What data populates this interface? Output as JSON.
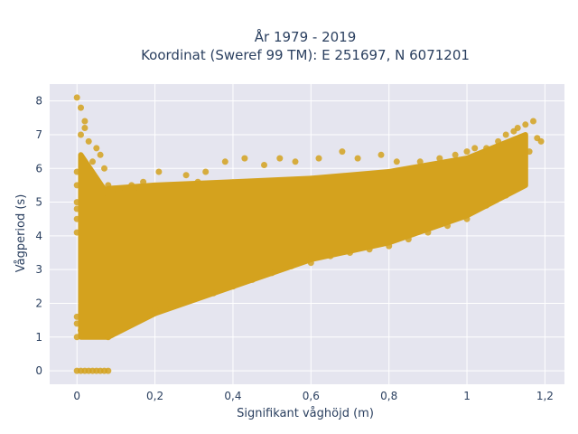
{
  "chart_data": {
    "type": "scatter",
    "title_line1": "År 1979 - 2019",
    "title_line2": "Koordinat (Sweref 99 TM): E 251697, N 6071201",
    "xlabel": "Signifikant våghöjd (m)",
    "ylabel": "Vågperiod (s)",
    "xlim": [
      -0.07,
      1.25
    ],
    "ylim": [
      -0.4,
      8.5
    ],
    "x_ticks": [
      0,
      0.2,
      0.4,
      0.6,
      0.8,
      1,
      1.2
    ],
    "x_tick_labels": [
      "0",
      "0,2",
      "0,4",
      "0,6",
      "0,8",
      "1",
      "1,2"
    ],
    "y_ticks": [
      0,
      1,
      2,
      3,
      4,
      5,
      6,
      7,
      8
    ],
    "y_tick_labels": [
      "0",
      "1",
      "2",
      "3",
      "4",
      "5",
      "6",
      "7",
      "8"
    ],
    "grid": true,
    "marker_color": "#d4a21e",
    "background_color": "#e5e5ef",
    "bands": [
      {
        "x": [
          0.01,
          0.08
        ],
        "ylow": [
          1.0,
          1.0
        ],
        "yhigh": [
          6.4,
          5.2
        ]
      },
      {
        "x": [
          0.08,
          0.2
        ],
        "ylow": [
          1.0,
          1.7
        ],
        "yhigh": [
          5.4,
          5.5
        ]
      },
      {
        "x": [
          0.2,
          0.4
        ],
        "ylow": [
          1.7,
          2.5
        ],
        "yhigh": [
          5.5,
          5.6
        ]
      },
      {
        "x": [
          0.4,
          0.6
        ],
        "ylow": [
          2.5,
          3.3
        ],
        "yhigh": [
          5.6,
          5.7
        ]
      },
      {
        "x": [
          0.6,
          0.8
        ],
        "ylow": [
          3.3,
          3.8
        ],
        "yhigh": [
          5.7,
          5.9
        ]
      },
      {
        "x": [
          0.8,
          1.0
        ],
        "ylow": [
          3.8,
          4.6
        ],
        "yhigh": [
          5.9,
          6.3
        ]
      },
      {
        "x": [
          1.0,
          1.15
        ],
        "ylow": [
          4.6,
          5.5
        ],
        "yhigh": [
          6.3,
          7.0
        ]
      }
    ],
    "points": [
      [
        0.0,
        8.1
      ],
      [
        0.01,
        7.8
      ],
      [
        0.02,
        7.2
      ],
      [
        0.02,
        7.4
      ],
      [
        0.01,
        7.0
      ],
      [
        0.03,
        6.8
      ],
      [
        0.0,
        5.9
      ],
      [
        0.0,
        5.5
      ],
      [
        0.0,
        5.0
      ],
      [
        0.0,
        4.8
      ],
      [
        0.0,
        4.5
      ],
      [
        0.0,
        4.1
      ],
      [
        0.0,
        1.6
      ],
      [
        0.0,
        1.4
      ],
      [
        0.01,
        1.2
      ],
      [
        0.0,
        1.0
      ],
      [
        0.02,
        0.0
      ],
      [
        0.03,
        0.0
      ],
      [
        0.04,
        0.0
      ],
      [
        0.05,
        0.0
      ],
      [
        0.06,
        0.0
      ],
      [
        0.07,
        0.0
      ],
      [
        0.08,
        0.0
      ],
      [
        0.0,
        0.0
      ],
      [
        0.01,
        0.0
      ],
      [
        0.05,
        6.6
      ],
      [
        0.06,
        6.4
      ],
      [
        0.04,
        6.2
      ],
      [
        0.07,
        6.0
      ],
      [
        0.08,
        5.5
      ],
      [
        0.03,
        5.7
      ],
      [
        0.17,
        5.6
      ],
      [
        0.21,
        5.9
      ],
      [
        0.28,
        5.8
      ],
      [
        0.33,
        5.9
      ],
      [
        0.38,
        6.2
      ],
      [
        0.43,
        6.3
      ],
      [
        0.48,
        6.1
      ],
      [
        0.52,
        6.3
      ],
      [
        0.56,
        6.2
      ],
      [
        0.62,
        6.3
      ],
      [
        0.68,
        6.5
      ],
      [
        0.72,
        6.3
      ],
      [
        0.78,
        6.4
      ],
      [
        0.82,
        6.2
      ],
      [
        0.88,
        6.2
      ],
      [
        0.93,
        6.3
      ],
      [
        0.97,
        6.4
      ],
      [
        1.0,
        6.5
      ],
      [
        1.02,
        6.6
      ],
      [
        1.05,
        6.6
      ],
      [
        1.08,
        6.8
      ],
      [
        1.1,
        7.0
      ],
      [
        1.12,
        7.1
      ],
      [
        1.13,
        7.2
      ],
      [
        1.15,
        7.3
      ],
      [
        1.17,
        7.4
      ],
      [
        1.18,
        6.9
      ],
      [
        1.19,
        6.8
      ],
      [
        1.16,
        6.5
      ],
      [
        1.14,
        6.3
      ],
      [
        1.11,
        6.1
      ],
      [
        0.08,
        1.0
      ],
      [
        0.1,
        1.2
      ],
      [
        0.12,
        1.5
      ],
      [
        0.15,
        1.6
      ],
      [
        0.2,
        1.8
      ],
      [
        0.25,
        2.0
      ],
      [
        0.3,
        2.2
      ],
      [
        0.35,
        2.3
      ],
      [
        0.4,
        2.5
      ],
      [
        0.45,
        2.7
      ],
      [
        0.5,
        2.9
      ],
      [
        0.55,
        3.1
      ],
      [
        0.6,
        3.2
      ],
      [
        0.65,
        3.4
      ],
      [
        0.7,
        3.5
      ],
      [
        0.75,
        3.6
      ],
      [
        0.8,
        3.7
      ],
      [
        0.85,
        3.9
      ],
      [
        0.9,
        4.1
      ],
      [
        0.95,
        4.3
      ],
      [
        1.0,
        4.5
      ],
      [
        1.05,
        4.9
      ],
      [
        1.1,
        5.2
      ],
      [
        0.09,
        5.3
      ],
      [
        0.11,
        5.4
      ],
      [
        0.14,
        5.5
      ],
      [
        0.16,
        5.4
      ],
      [
        0.24,
        5.5
      ],
      [
        0.31,
        5.6
      ]
    ]
  }
}
